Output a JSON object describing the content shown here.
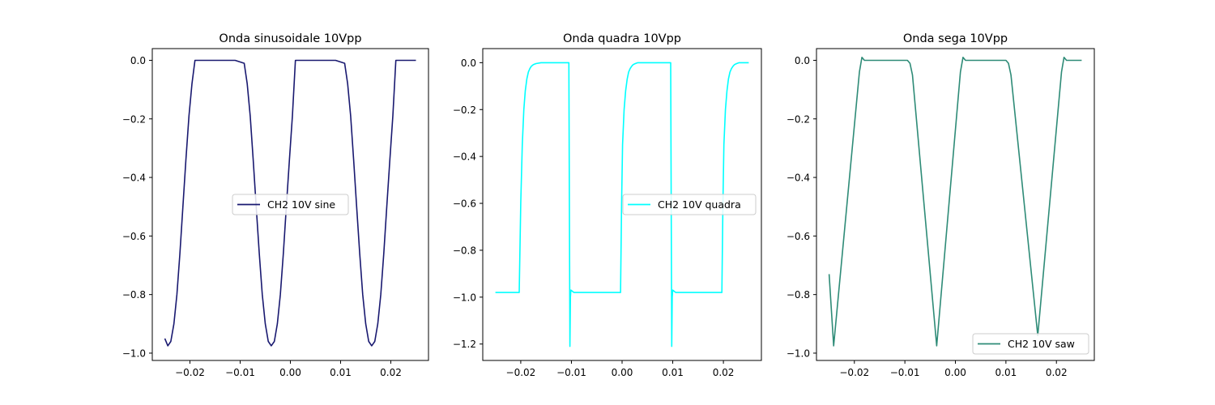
{
  "chart_data": [
    {
      "type": "line",
      "title": "Onda sinusoidale 10Vpp",
      "xlabel": "",
      "ylabel": "",
      "xlim": [
        -0.0275,
        0.0275
      ],
      "ylim": [
        -1.025,
        0.04
      ],
      "xticks": [
        -0.02,
        -0.01,
        0.0,
        0.01,
        0.02
      ],
      "xtick_labels": [
        "−0.02",
        "−0.01",
        "0.00",
        "0.01",
        "0.02"
      ],
      "yticks": [
        0.0,
        -0.2,
        -0.4,
        -0.6,
        -0.8,
        -1.0
      ],
      "ytick_labels": [
        "0.0",
        "−0.2",
        "−0.4",
        "−0.6",
        "−0.8",
        "−1.0"
      ],
      "grid": false,
      "legend": "center-right",
      "series": [
        {
          "name": "CH2 10V sine",
          "color": "#191970",
          "x": [
            -0.025,
            -0.0244,
            -0.0238,
            -0.0232,
            -0.0226,
            -0.022,
            -0.0214,
            -0.0208,
            -0.0202,
            -0.0196,
            -0.019,
            -0.017,
            -0.013,
            -0.011,
            -0.0092,
            -0.0086,
            -0.008,
            -0.0074,
            -0.0068,
            -0.0062,
            -0.0056,
            -0.005,
            -0.0044,
            -0.0038,
            -0.0032,
            -0.0026,
            -0.002,
            -0.0014,
            -0.0008,
            -0.0002,
            0.0004,
            0.001,
            0.003,
            0.007,
            0.009,
            0.0108,
            0.0114,
            0.012,
            0.0126,
            0.0132,
            0.0138,
            0.0144,
            0.015,
            0.0156,
            0.0162,
            0.0168,
            0.0174,
            0.018,
            0.0186,
            0.0192,
            0.0198,
            0.0204,
            0.021,
            0.023,
            0.025
          ],
          "y": [
            -0.95,
            -0.975,
            -0.96,
            -0.9,
            -0.8,
            -0.66,
            -0.5,
            -0.34,
            -0.19,
            -0.08,
            0.0,
            0.0,
            0.0,
            0.0,
            -0.01,
            -0.08,
            -0.19,
            -0.34,
            -0.5,
            -0.66,
            -0.8,
            -0.9,
            -0.96,
            -0.975,
            -0.96,
            -0.9,
            -0.8,
            -0.66,
            -0.5,
            -0.34,
            -0.19,
            0.0,
            0.0,
            0.0,
            0.0,
            -0.01,
            -0.08,
            -0.19,
            -0.34,
            -0.5,
            -0.66,
            -0.8,
            -0.9,
            -0.96,
            -0.975,
            -0.96,
            -0.9,
            -0.8,
            -0.66,
            -0.5,
            -0.34,
            -0.19,
            0.0,
            0.0,
            0.0
          ]
        }
      ]
    },
    {
      "type": "line",
      "title": "Onda quadra 10Vpp",
      "xlabel": "",
      "ylabel": "",
      "xlim": [
        -0.0275,
        0.0275
      ],
      "ylim": [
        -1.27,
        0.06
      ],
      "xticks": [
        -0.02,
        -0.01,
        0.0,
        0.01,
        0.02
      ],
      "xtick_labels": [
        "−0.02",
        "−0.01",
        "0.00",
        "0.01",
        "0.02"
      ],
      "yticks": [
        0.0,
        -0.2,
        -0.4,
        -0.6,
        -0.8,
        -1.0,
        -1.2
      ],
      "ytick_labels": [
        "0.0",
        "−0.2",
        "−0.4",
        "−0.6",
        "−0.8",
        "−1.0",
        "−1.2"
      ],
      "grid": false,
      "legend": "center-right",
      "series": [
        {
          "name": "CH2 10V quadra",
          "color": "#00ffff",
          "x": [
            -0.025,
            -0.0203,
            -0.02,
            -0.0197,
            -0.0194,
            -0.0191,
            -0.0188,
            -0.0185,
            -0.0182,
            -0.0179,
            -0.0175,
            -0.017,
            -0.016,
            -0.0105,
            -0.0103,
            -0.0102,
            -0.0101,
            -0.0098,
            -0.0095,
            -0.009,
            -0.0003,
            -0.0001,
            0.0001,
            0.0004,
            0.0007,
            0.001,
            0.0013,
            0.0016,
            0.0019,
            0.0022,
            0.0026,
            0.0031,
            0.0041,
            0.0096,
            0.0098,
            0.0099,
            0.01,
            0.0103,
            0.0106,
            0.0111,
            0.0197,
            0.0199,
            0.0201,
            0.0204,
            0.0207,
            0.021,
            0.0213,
            0.0216,
            0.0219,
            0.0222,
            0.0226,
            0.0231,
            0.025
          ],
          "y": [
            -0.98,
            -0.98,
            -0.6,
            -0.35,
            -0.2,
            -0.12,
            -0.07,
            -0.04,
            -0.025,
            -0.015,
            -0.008,
            -0.004,
            0.0,
            0.0,
            -1.21,
            -1.0,
            -0.97,
            -0.975,
            -0.98,
            -0.98,
            -0.98,
            -0.6,
            -0.35,
            -0.2,
            -0.12,
            -0.07,
            -0.04,
            -0.025,
            -0.015,
            -0.008,
            -0.004,
            0.0,
            0.0,
            0.0,
            -1.21,
            -1.0,
            -0.97,
            -0.975,
            -0.98,
            -0.98,
            -0.98,
            -0.6,
            -0.35,
            -0.2,
            -0.12,
            -0.07,
            -0.04,
            -0.025,
            -0.015,
            -0.008,
            -0.004,
            0.0,
            0.0
          ]
        }
      ]
    },
    {
      "type": "line",
      "title": "Onda sega 10Vpp",
      "xlabel": "",
      "ylabel": "",
      "xlim": [
        -0.0275,
        0.0275
      ],
      "ylim": [
        -1.025,
        0.04
      ],
      "xticks": [
        -0.02,
        -0.01,
        0.0,
        0.01,
        0.02
      ],
      "xtick_labels": [
        "−0.02",
        "−0.01",
        "0.00",
        "0.01",
        "0.02"
      ],
      "yticks": [
        0.0,
        -0.2,
        -0.4,
        -0.6,
        -0.8,
        -1.0
      ],
      "ytick_labels": [
        "0.0",
        "−0.2",
        "−0.4",
        "−0.6",
        "−0.8",
        "−1.0"
      ],
      "grid": false,
      "legend": "lower-right",
      "series": [
        {
          "name": "CH2 10V saw",
          "color": "#2e8b77",
          "x": [
            -0.025,
            -0.0241,
            -0.019,
            -0.0185,
            -0.018,
            -0.016,
            -0.012,
            -0.0095,
            -0.009,
            -0.0085,
            -0.0037,
            0.001,
            0.0015,
            0.002,
            0.006,
            0.01,
            0.0105,
            0.011,
            0.0163,
            0.021,
            0.0215,
            0.022,
            0.025
          ],
          "y": [
            -0.73,
            -0.975,
            -0.04,
            0.01,
            0.0,
            0.0,
            0.0,
            0.0,
            -0.01,
            -0.05,
            -0.975,
            -0.04,
            0.01,
            0.0,
            0.0,
            0.0,
            -0.01,
            -0.05,
            -0.94,
            -0.04,
            0.01,
            0.0,
            0.0
          ]
        }
      ]
    }
  ]
}
